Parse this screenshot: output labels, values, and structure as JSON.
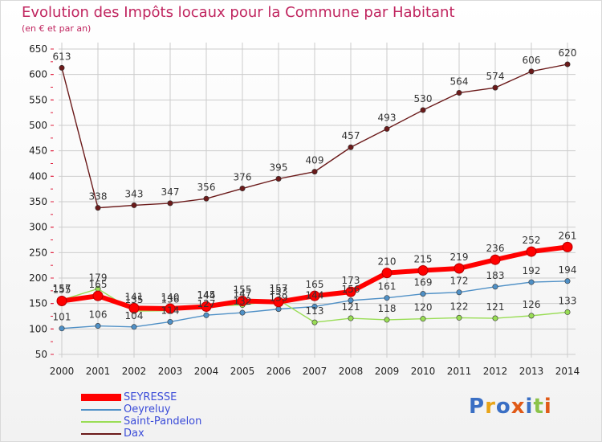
{
  "header": {
    "title": "Evolution des Impôts locaux pour la Commune par Habitant",
    "subtitle": "(en € et par an)"
  },
  "logo": {
    "text": "Proxiti",
    "colors": [
      "#3a6fc4",
      "#e8a418",
      "#3a6fc4",
      "#e05a17",
      "#3a6fc4",
      "#8bc34a",
      "#e05a17"
    ]
  },
  "colors": {
    "title": "#c0255f",
    "axis_text": "#222222",
    "grid": "#cccccc",
    "axis_tick_red": "#e0203f"
  },
  "chart_data": {
    "type": "line",
    "title": "Evolution des Impôts locaux pour la Commune par Habitant",
    "subtitle": "(en € et par an)",
    "x": [
      2000,
      2001,
      2002,
      2003,
      2004,
      2005,
      2006,
      2007,
      2008,
      2009,
      2010,
      2011,
      2012,
      2013,
      2014
    ],
    "ylim": [
      50,
      650
    ],
    "yticks": [
      50,
      100,
      150,
      200,
      250,
      300,
      350,
      400,
      450,
      500,
      550,
      600,
      650
    ],
    "grid": true,
    "legend_position": "bottom-left",
    "series": [
      {
        "name": "SEYRESSE",
        "color": "#ff0000",
        "style": "thick",
        "values": [
          155,
          165,
          141,
          140,
          144,
          155,
          153,
          165,
          173,
          210,
          215,
          219,
          236,
          252,
          261
        ]
      },
      {
        "name": "Oeyreluy",
        "color": "#4f90c6",
        "style": "thin",
        "values": [
          101,
          106,
          104,
          114,
          127,
          132,
          139,
          144,
          156,
          161,
          169,
          172,
          183,
          192,
          194
        ]
      },
      {
        "name": "Saint-Pandelon",
        "color": "#99dd55",
        "style": "thin",
        "values": [
          157,
          179,
          135,
          136,
          145,
          147,
          157,
          113,
          121,
          118,
          120,
          122,
          121,
          126,
          133
        ]
      },
      {
        "name": "Dax",
        "color": "#6b1a1a",
        "style": "thin",
        "values": [
          613,
          338,
          343,
          347,
          356,
          376,
          395,
          409,
          457,
          493,
          530,
          564,
          574,
          606,
          620
        ]
      }
    ]
  }
}
